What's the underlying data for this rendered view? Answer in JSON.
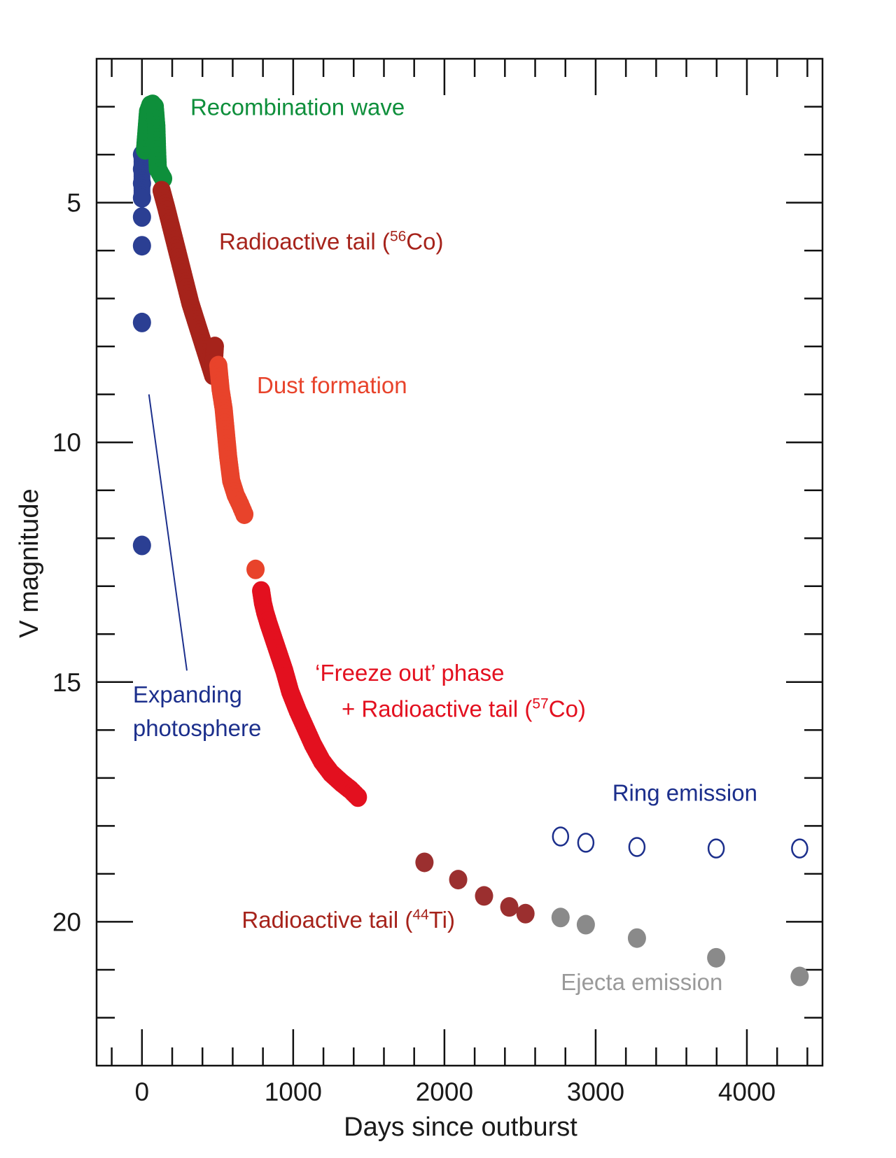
{
  "chart_data": {
    "type": "scatter",
    "title": "",
    "xlabel": "Days since outburst",
    "ylabel": "V magnitude",
    "xlim": [
      -300,
      4500
    ],
    "ylim": [
      2,
      23
    ],
    "y_inverted": true,
    "x_major_ticks": [
      0,
      1000,
      2000,
      3000,
      4000
    ],
    "x_tick_labels": [
      "0",
      "1000",
      "2000",
      "3000",
      "4000"
    ],
    "x_minor_step": 200,
    "y_major_ticks": [
      5,
      10,
      15,
      20
    ],
    "y_tick_labels": [
      "5",
      "10",
      "15",
      "20"
    ],
    "y_minor_step": 1,
    "grid": false,
    "legend": "none (inline annotations)",
    "series": [
      {
        "name": "Expanding photosphere",
        "color": "#2b3f93",
        "marker": "filled",
        "points": [
          [
            0,
            4.0
          ],
          [
            0,
            4.3
          ],
          [
            0,
            4.6
          ],
          [
            0,
            4.9
          ],
          [
            0,
            5.3
          ],
          [
            0,
            5.9
          ],
          [
            0,
            7.5
          ],
          [
            0,
            12.15
          ]
        ]
      },
      {
        "name": "Recombination wave",
        "color": "#0e8f3b",
        "marker": "filled",
        "points": [
          [
            20,
            3.9
          ],
          [
            30,
            3.5
          ],
          [
            40,
            3.1
          ],
          [
            55,
            2.97
          ],
          [
            70,
            2.95
          ],
          [
            85,
            3.0
          ],
          [
            95,
            3.4
          ],
          [
            100,
            3.9
          ],
          [
            105,
            4.3
          ],
          [
            140,
            4.5
          ]
        ]
      },
      {
        "name": "Radioactive tail (56Co)",
        "color": "#a6231b",
        "marker": "filled",
        "points": [
          [
            130,
            4.75
          ],
          [
            160,
            5.1
          ],
          [
            200,
            5.6
          ],
          [
            240,
            6.1
          ],
          [
            280,
            6.6
          ],
          [
            320,
            7.1
          ],
          [
            360,
            7.5
          ],
          [
            400,
            7.9
          ],
          [
            440,
            8.3
          ],
          [
            470,
            8.6
          ],
          [
            482,
            8.0
          ]
        ]
      },
      {
        "name": "Dust formation",
        "color": "#e8432b",
        "marker": "filled",
        "points": [
          [
            505,
            8.4
          ],
          [
            520,
            8.9
          ],
          [
            540,
            9.3
          ],
          [
            555,
            9.8
          ],
          [
            570,
            10.3
          ],
          [
            590,
            10.8
          ],
          [
            620,
            11.1
          ],
          [
            650,
            11.3
          ],
          [
            677,
            11.5
          ],
          [
            751,
            12.65
          ]
        ]
      },
      {
        "name": "'Freeze out' phase + Radioactive tail (57Co)",
        "color": "#e3101f",
        "marker": "filled",
        "points": [
          [
            788,
            13.1
          ],
          [
            800,
            13.35
          ],
          [
            815,
            13.55
          ],
          [
            839,
            13.8
          ],
          [
            941,
            14.76
          ],
          [
            980,
            15.2
          ],
          [
            1030,
            15.6
          ],
          [
            1080,
            15.95
          ],
          [
            1130,
            16.3
          ],
          [
            1190,
            16.65
          ],
          [
            1250,
            16.9
          ],
          [
            1320,
            17.1
          ],
          [
            1380,
            17.25
          ],
          [
            1428,
            17.4
          ]
        ]
      },
      {
        "name": "Radioactive tail (44Ti)",
        "color": "#9b2f2f",
        "marker": "filled",
        "points": [
          [
            1868,
            18.76
          ],
          [
            2091,
            19.12
          ],
          [
            2262,
            19.46
          ],
          [
            2429,
            19.69
          ],
          [
            2536,
            19.83
          ]
        ]
      },
      {
        "name": "Ejecta emission",
        "color": "#8a8a8a",
        "marker": "filled",
        "points": [
          [
            2768,
            19.91
          ],
          [
            2935,
            20.06
          ],
          [
            3273,
            20.34
          ],
          [
            3797,
            20.75
          ],
          [
            4349,
            21.14
          ]
        ]
      },
      {
        "name": "Ring emission",
        "color": "#1c2f8c",
        "marker": "open",
        "points": [
          [
            2768,
            18.22
          ],
          [
            2935,
            18.35
          ],
          [
            3273,
            18.44
          ],
          [
            3797,
            18.47
          ],
          [
            4349,
            18.47
          ]
        ]
      }
    ],
    "annotations": [
      {
        "id": "recombination",
        "text": "Recombination wave",
        "sup": "",
        "suffix": "",
        "color": "#0e8f3b",
        "x": 320,
        "y": 3.0
      },
      {
        "id": "co56",
        "text": "Radioactive tail (",
        "sup": "56",
        "suffix": "Co)",
        "color": "#a6231b",
        "x": 510,
        "y": 5.8
      },
      {
        "id": "dust",
        "text": "Dust formation",
        "sup": "",
        "suffix": "",
        "color": "#e8432b",
        "x": 760,
        "y": 8.8
      },
      {
        "id": "freeze1",
        "text": "‘Freeze out’ phase",
        "sup": "",
        "suffix": "",
        "color": "#e3101f",
        "x": 1145,
        "y": 14.8
      },
      {
        "id": "freeze2",
        "text": "+ Radioactive tail (",
        "sup": "57",
        "suffix": "Co)",
        "color": "#e3101f",
        "x": 1320,
        "y": 15.55
      },
      {
        "id": "expanding1",
        "text": "Expanding",
        "sup": "",
        "suffix": "",
        "color": "#1c2f8c",
        "x": -60,
        "y": 15.25
      },
      {
        "id": "expanding2",
        "text": "photosphere",
        "sup": "",
        "suffix": "",
        "color": "#1c2f8c",
        "x": -60,
        "y": 15.95
      },
      {
        "id": "ring",
        "text": "Ring emission",
        "sup": "",
        "suffix": "",
        "color": "#1c2f8c",
        "x": 3110,
        "y": 17.3
      },
      {
        "id": "ti44",
        "text": "Radioactive tail (",
        "sup": "44",
        "suffix": "Ti)",
        "color": "#a6231b",
        "x": 660,
        "y": 19.95
      },
      {
        "id": "ejecta",
        "text": "Ejecta emission",
        "sup": "",
        "suffix": "",
        "color": "#999999",
        "x": 2770,
        "y": 21.25
      }
    ],
    "leader_line": {
      "color": "#1c2f8c",
      "from": [
        46,
        9.0
      ],
      "to": [
        297,
        14.76
      ]
    }
  }
}
